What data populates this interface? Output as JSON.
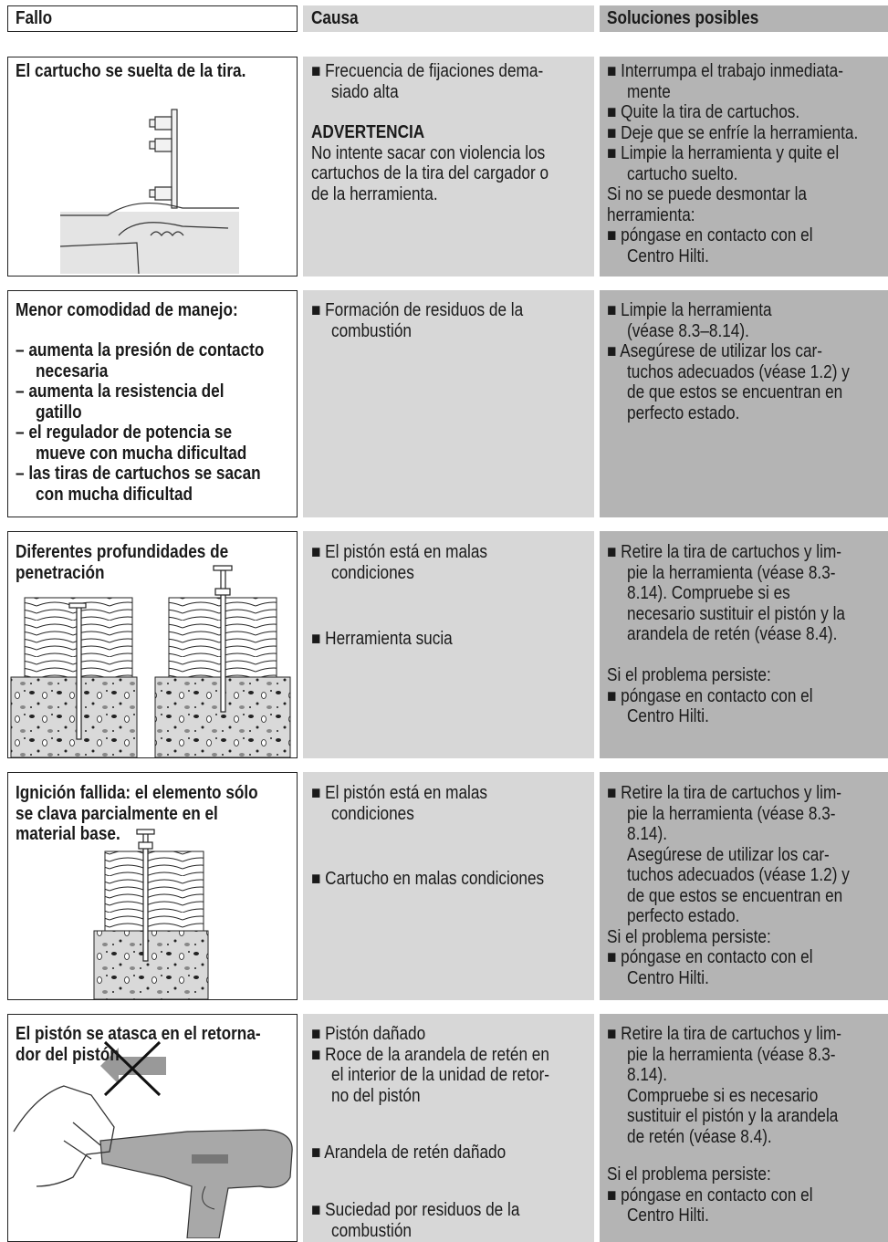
{
  "header": {
    "columns": [
      "Fallo",
      "Causa",
      "Soluciones posibles"
    ]
  },
  "rows": [
    {
      "fallo": [
        "El cartucho se suelta de la tira."
      ],
      "causa": [
        "■ Frecuencia de fijaciones dema-",
        "siado alta",
        "ADVERTENCIA",
        "No intente sacar con violencia los",
        "cartuchos de la tira del cargador o",
        "de la herramienta."
      ],
      "soluciones": [
        "■ Interrumpa el trabajo inmediata-",
        "mente",
        "■ Quite la tira de cartuchos.",
        "■ Deje que se enfríe la herramienta.",
        "■ Limpie la herramienta y quite el",
        "cartucho suelto.",
        "Si no se puede desmontar la",
        "herramienta:",
        "■ póngase en contacto con el",
        "Centro Hilti."
      ]
    },
    {
      "fallo": [
        "Menor comodidad de manejo:",
        "– aumenta la presión de contacto",
        "necesaria",
        "– aumenta la resistencia del",
        "gatillo",
        "– el regulador de potencia se",
        "mueve con mucha dificultad",
        "– las tiras de cartuchos se sacan",
        "con mucha dificultad"
      ],
      "causa": [
        "■ Formación de residuos de la",
        "combustión"
      ],
      "soluciones": [
        "■ Limpie la herramienta",
        "(véase 8.3–8.14).",
        "■ Asegúrese de utilizar los car-",
        "tuchos adecuados (véase 1.2) y",
        "de que estos se encuentran en",
        "perfecto estado."
      ]
    },
    {
      "fallo": [
        "Diferentes profundidades de",
        "penetración"
      ],
      "causa": [
        "■ El pistón está en malas",
        "condiciones",
        "■ Herramienta sucia"
      ],
      "soluciones": [
        "■ Retire la tira de cartuchos y lim-",
        "pie la herramienta (véase 8.3-",
        "8.14). Compruebe si es",
        "necesario sustituir el pistón y la",
        "arandela de retén (véase 8.4).",
        "Si el problema persiste:",
        "■ póngase en contacto con el",
        "Centro Hilti."
      ]
    },
    {
      "fallo": [
        "Ignición fallida: el elemento sólo",
        "se clava parcialmente en el",
        "material base."
      ],
      "causa": [
        "■ El pistón está en malas",
        "condiciones",
        "■ Cartucho en malas condiciones"
      ],
      "soluciones": [
        "■ Retire la tira de cartuchos y lim-",
        "pie la herramienta (véase 8.3-",
        "8.14).",
        "Asegúrese de utilizar los car-",
        "tuchos adecuados (véase 1.2) y",
        "de que estos se encuentran en",
        "perfecto estado.",
        "Si el problema persiste:",
        "■ póngase en contacto con el",
        "Centro Hilti."
      ]
    },
    {
      "fallo": [
        "El pistón se atasca en el retorna-",
        "dor del pistón"
      ],
      "causa": [
        "■ Pistón dañado",
        "■ Roce de la arandela de retén en",
        "el interior de la unidad de retor-",
        "no del pistón",
        "■ Arandela de retén dañado",
        "■ Suciedad por residuos de la",
        "combustión"
      ],
      "soluciones": [
        "■ Retire la tira de cartuchos y lim-",
        "pie la herramienta (véase 8.3-",
        "8.14).",
        "Compruebe si es necesario",
        "sustituir el pistón y la arandela",
        "de retén (véase 8.4).",
        "Si el problema persiste:",
        "■ póngase en contacto con el",
        "Centro Hilti."
      ]
    }
  ]
}
